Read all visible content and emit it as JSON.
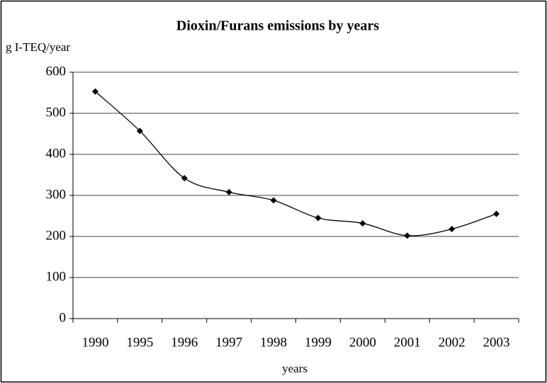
{
  "chart_data": {
    "type": "line",
    "title": "Dioxin/Furans emissions by years",
    "y_label": "g I-TEQ/year",
    "x_label": "years",
    "categories": [
      "1990",
      "1995",
      "1996",
      "1997",
      "1998",
      "1999",
      "2000",
      "2001",
      "2002",
      "2003"
    ],
    "series": [
      {
        "name": "Dioxin/Furans emissions",
        "color": "#000000",
        "values": [
          553,
          457,
          342,
          308,
          288,
          245,
          232,
          202,
          218,
          255
        ]
      }
    ],
    "ylim": [
      0,
      600
    ],
    "yticks": [
      0,
      100,
      200,
      300,
      400,
      500,
      600
    ],
    "grid": true,
    "smooth": true
  }
}
